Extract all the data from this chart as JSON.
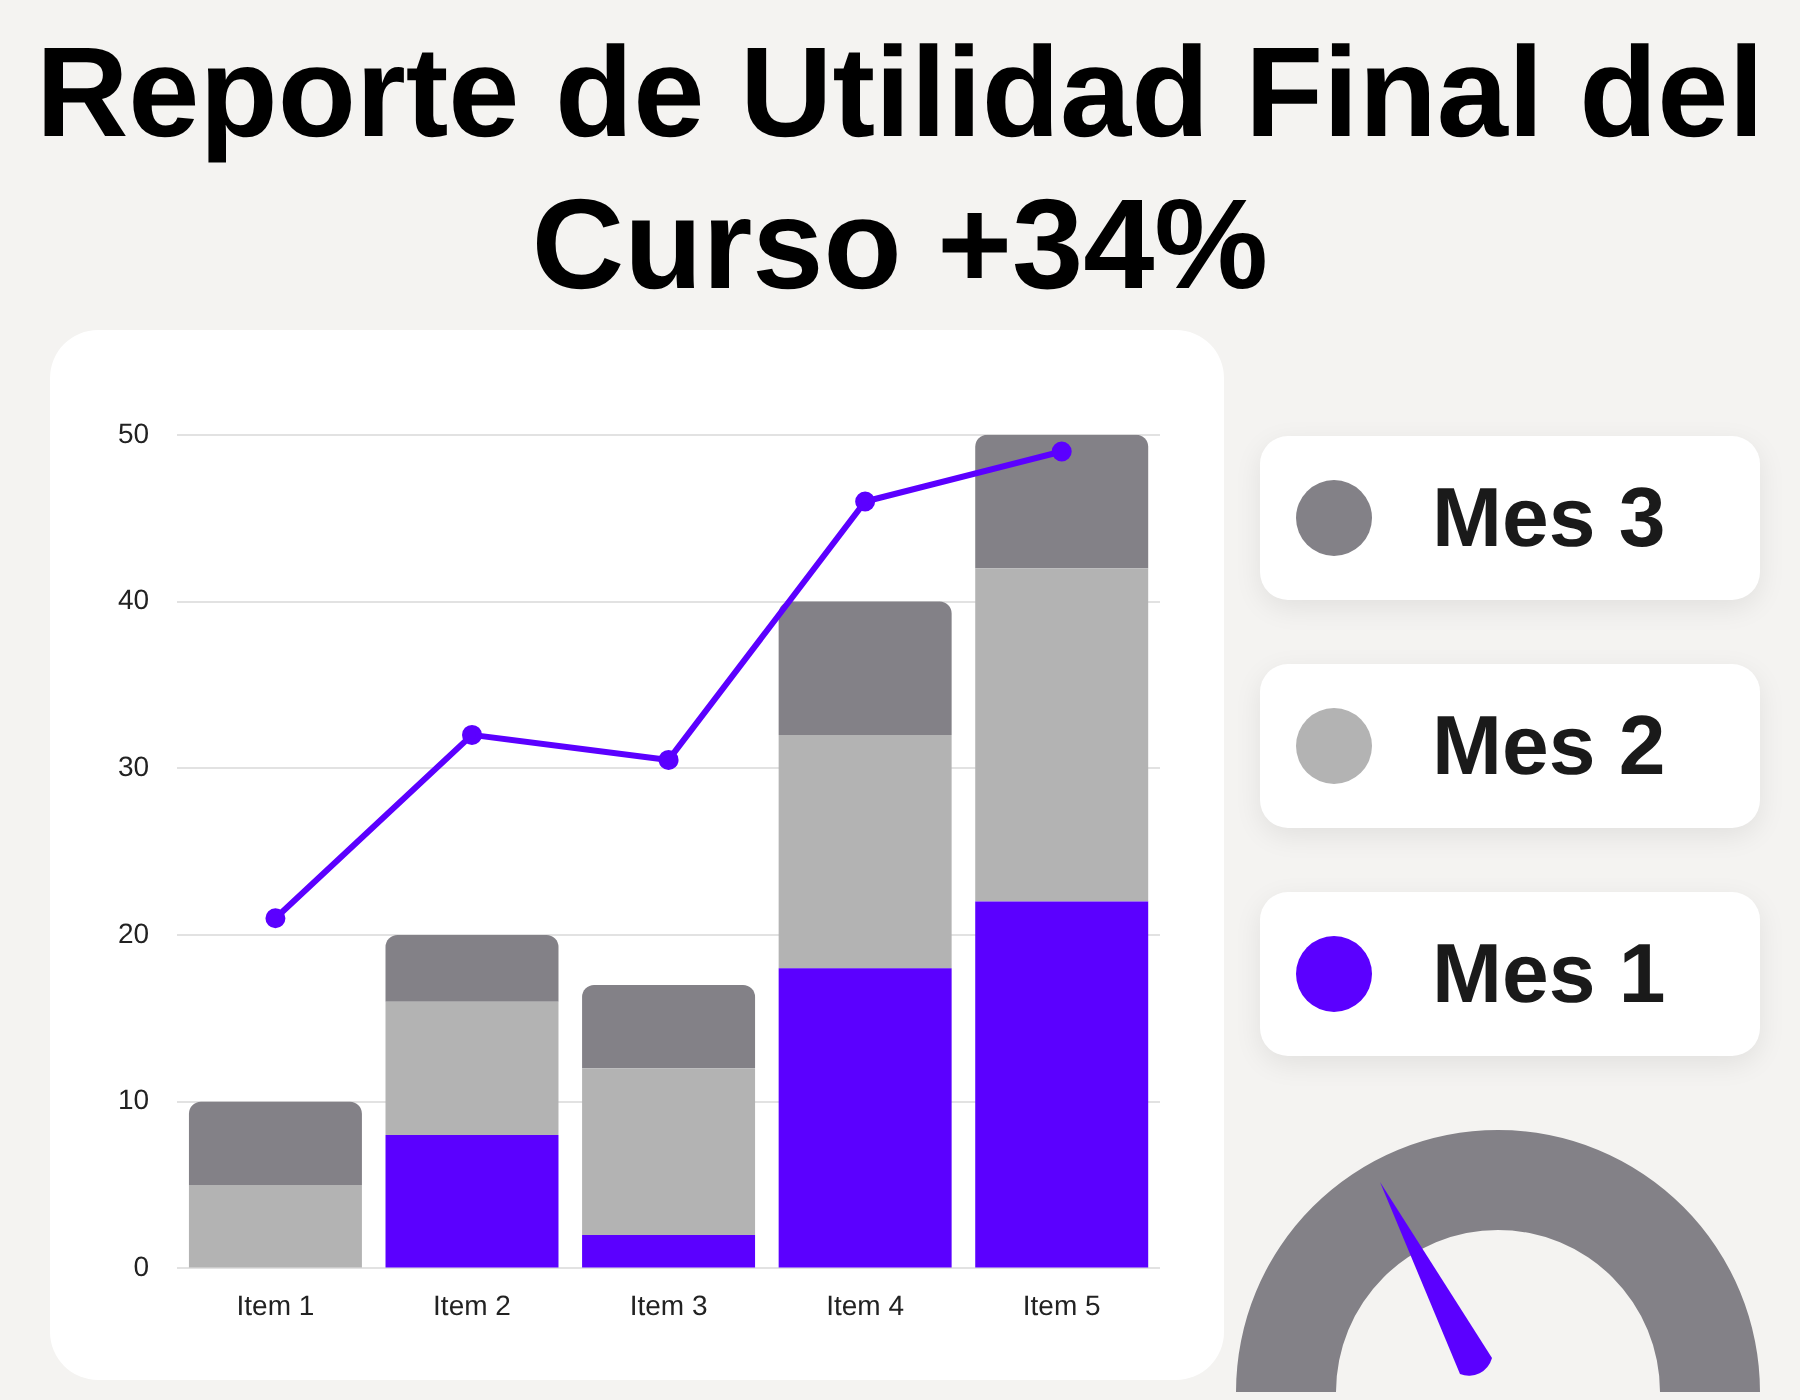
{
  "chart_data": {
    "type": "bar",
    "title": "Reporte de Utilidad Final del Curso +34%",
    "categories": [
      "Item 1",
      "Item 2",
      "Item 3",
      "Item 4",
      "Item 5"
    ],
    "stacked": true,
    "series": [
      {
        "name": "Mes 1",
        "color": "#5b00ff",
        "values": [
          0,
          8,
          2,
          18,
          22
        ]
      },
      {
        "name": "Mes 2",
        "color": "#b3b3b3",
        "values": [
          5,
          8,
          10,
          14,
          20
        ]
      },
      {
        "name": "Mes 3",
        "color": "#838187",
        "values": [
          5,
          4,
          5,
          8,
          8
        ]
      },
      {
        "type": "line",
        "color": "#5b00ff",
        "values": [
          21,
          32,
          30.5,
          46,
          49
        ]
      }
    ],
    "ylim": [
      0,
      50
    ],
    "yticks": [
      0,
      10,
      20,
      30,
      40,
      50
    ],
    "grid": "y",
    "legend": "right",
    "marker": "circle"
  }
}
